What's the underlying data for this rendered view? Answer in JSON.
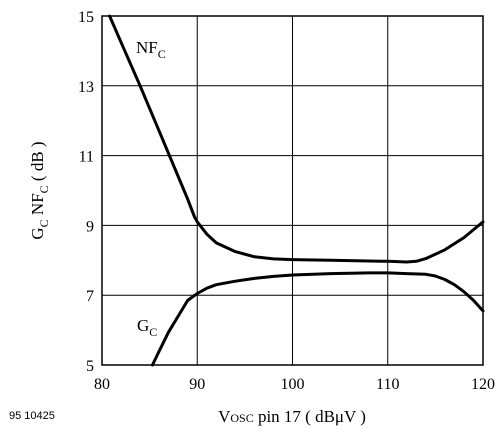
{
  "chart_data": {
    "type": "line",
    "figure_id": "95 10425",
    "xlim": [
      80,
      120
    ],
    "ylim": [
      5,
      15
    ],
    "x_ticks": [
      80,
      90,
      100,
      110,
      120
    ],
    "y_ticks": [
      5,
      7,
      9,
      11,
      13,
      15
    ],
    "grid": true,
    "xlabel": {
      "main": "V",
      "sub": "OSC",
      "rest": " pin 17 ( dBμV )"
    },
    "ylabel": {
      "g": "G",
      "g_sub": "C",
      "nf": " NF",
      "nf_sub": "C",
      "unit": " ( dB )"
    },
    "series": [
      {
        "name": "NF",
        "name_sub": "C",
        "points": [
          [
            80.8,
            15.0
          ],
          [
            82,
            14.25
          ],
          [
            84,
            13.0
          ],
          [
            86,
            11.7
          ],
          [
            88,
            10.4
          ],
          [
            89,
            9.75
          ],
          [
            89.7,
            9.25
          ],
          [
            90,
            9.1
          ],
          [
            91,
            8.75
          ],
          [
            92,
            8.5
          ],
          [
            94,
            8.25
          ],
          [
            96,
            8.1
          ],
          [
            98,
            8.04
          ],
          [
            100,
            8.02
          ],
          [
            104,
            8.0
          ],
          [
            108,
            7.98
          ],
          [
            110,
            7.97
          ],
          [
            112,
            7.95
          ],
          [
            113,
            7.97
          ],
          [
            114,
            8.05
          ],
          [
            116,
            8.3
          ],
          [
            118,
            8.65
          ],
          [
            120,
            9.1
          ]
        ]
      },
      {
        "name": "G",
        "name_sub": "C",
        "points": [
          [
            85.3,
            5.0
          ],
          [
            86,
            5.4
          ],
          [
            87,
            5.95
          ],
          [
            88,
            6.4
          ],
          [
            89,
            6.85
          ],
          [
            90,
            7.05
          ],
          [
            91,
            7.2
          ],
          [
            92,
            7.3
          ],
          [
            94,
            7.4
          ],
          [
            96,
            7.48
          ],
          [
            98,
            7.54
          ],
          [
            100,
            7.58
          ],
          [
            104,
            7.62
          ],
          [
            108,
            7.64
          ],
          [
            110,
            7.64
          ],
          [
            112,
            7.62
          ],
          [
            114,
            7.6
          ],
          [
            115,
            7.55
          ],
          [
            116,
            7.45
          ],
          [
            117,
            7.3
          ],
          [
            118,
            7.1
          ],
          [
            119,
            6.85
          ],
          [
            120,
            6.55
          ]
        ]
      }
    ]
  }
}
